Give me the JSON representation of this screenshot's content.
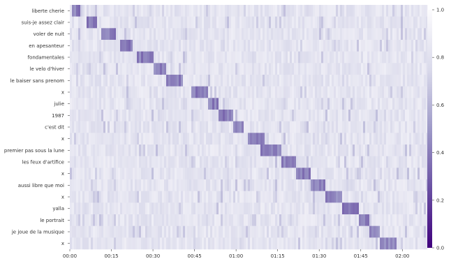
{
  "chart_data": {
    "type": "heatmap",
    "title": "",
    "xlabel": "",
    "ylabel": "",
    "rows": [
      "liberte cherie",
      "suis-je assez clair",
      "voler de nuit",
      "en apesanteur",
      "fondamentales",
      "le velo d'hiver",
      "le baiser sans prenom",
      "x",
      "julie",
      "1987",
      "c'est dit",
      "x",
      "premier pas sous la lune",
      "les feux d'artifice",
      "x",
      "aussi libre que moi",
      "x",
      "yalla",
      "le portrait",
      "je joue de la musique",
      "x"
    ],
    "x_ticks": [
      "00:00",
      "00:15",
      "00:30",
      "00:45",
      "01:00",
      "01:15",
      "01:30",
      "01:45",
      "02:00"
    ],
    "x_range_seconds": [
      0,
      129
    ],
    "diagonal_peaks_seconds": [
      [
        1,
        4
      ],
      [
        6,
        10
      ],
      [
        11,
        17
      ],
      [
        18,
        23
      ],
      [
        24,
        30
      ],
      [
        30,
        35
      ],
      [
        35,
        41
      ],
      [
        44,
        50
      ],
      [
        50,
        54
      ],
      [
        54,
        59
      ],
      [
        59,
        63
      ],
      [
        64,
        70
      ],
      [
        69,
        76
      ],
      [
        76,
        82
      ],
      [
        82,
        87
      ],
      [
        87,
        92
      ],
      [
        92,
        98
      ],
      [
        98,
        104
      ],
      [
        104,
        108
      ],
      [
        108,
        112
      ],
      [
        112,
        118
      ]
    ],
    "colorbar": {
      "min": 0.0,
      "max": 1.0,
      "ticks": [
        "0.0",
        "0.2",
        "0.4",
        "0.6",
        "0.8",
        "1.0"
      ],
      "colormap": "Purples_r",
      "low_color": "#3f007d",
      "high_color": "#fcfbfd"
    },
    "grid": false,
    "legend": "colorbar-right"
  }
}
